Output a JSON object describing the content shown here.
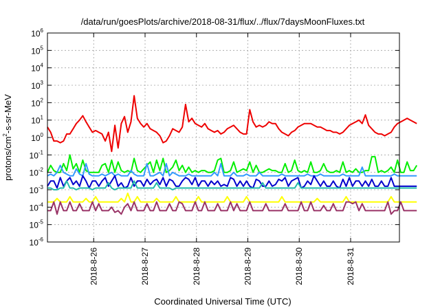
{
  "chart_data": {
    "type": "line",
    "title": "/data/run/goesPlots/archive/2018-08-31/flux/../flux/7daysMoonFluxes.txt",
    "xlabel": "Coordinated Universal Time (UTC)",
    "ylabel_parts": [
      "protons/cm",
      "2",
      "-s-sr-MeV"
    ],
    "y_scale": "log",
    "ylim_exponents": [
      -6,
      6
    ],
    "xlim_days": [
      25.1,
      31.95
    ],
    "x_ticks": [
      {
        "label": "2018-8-26",
        "day": 26
      },
      {
        "label": "2018-8-27",
        "day": 27
      },
      {
        "label": "2018-8-28",
        "day": 28
      },
      {
        "label": "2018-8-29",
        "day": 29
      },
      {
        "label": "2018-8-30",
        "day": 30
      },
      {
        "label": "2018-8-31",
        "day": 31
      }
    ],
    "y_ticks": [
      {
        "base": "10",
        "exp": "-6"
      },
      {
        "base": "10",
        "exp": "-5"
      },
      {
        "base": "10",
        "exp": "-4"
      },
      {
        "base": "10",
        "exp": "-3"
      },
      {
        "base": "10",
        "exp": "-2"
      },
      {
        "base": "10",
        "exp": "-1"
      },
      {
        "base": "10",
        "exp": "0"
      },
      {
        "base": "10",
        "exp": "1"
      },
      {
        "base": "10",
        "exp": "2"
      },
      {
        "base": "10",
        "exp": "3"
      },
      {
        "base": "10",
        "exp": "4"
      },
      {
        "base": "10",
        "exp": "5"
      },
      {
        "base": "10",
        "exp": "6"
      }
    ],
    "grid": true,
    "x_start": 25.1,
    "x_step": 0.0625,
    "series": [
      {
        "color": "#ee0000",
        "log10": [
          0.6,
          0.3,
          -0.2,
          -0.2,
          -0.3,
          -0.2,
          0.2,
          0.2,
          0.5,
          0.8,
          1.0,
          1.25,
          0.9,
          0.6,
          0.3,
          0.4,
          0.3,
          0.2,
          -0.2,
          0.3,
          -0.8,
          0.7,
          -0.6,
          0.8,
          1.2,
          0.3,
          0.9,
          2.4,
          1.1,
          0.8,
          0.6,
          0.8,
          0.5,
          0.4,
          0.3,
          0.1,
          -0.3,
          -0.2,
          0.1,
          0.5,
          0.4,
          0.3,
          0.6,
          1.9,
          0.9,
          1.1,
          0.8,
          0.7,
          0.6,
          0.8,
          0.5,
          0.4,
          0.3,
          0.4,
          0.2,
          0.3,
          0.5,
          0.6,
          0.7,
          0.5,
          0.3,
          0.2,
          0.2,
          1.6,
          0.9,
          0.6,
          0.7,
          0.6,
          0.7,
          0.9,
          0.8,
          0.8,
          0.5,
          0.3,
          0.2,
          0.1,
          0.3,
          0.4,
          0.6,
          0.7,
          0.8,
          0.8,
          0.8,
          0.7,
          0.6,
          0.6,
          0.5,
          0.4,
          0.4,
          0.3,
          0.3,
          0.2,
          0.3,
          0.5,
          0.7,
          0.8,
          0.9,
          1.0,
          0.8,
          1.3,
          0.7,
          0.5,
          0.3,
          0.2,
          0.2,
          0.1,
          0.2,
          0.3,
          0.6,
          0.8,
          0.9,
          1.0,
          1.1,
          1.0,
          0.9,
          0.8
        ]
      },
      {
        "color": "#00ee00",
        "log10": [
          -2.0,
          -1.6,
          -1.9,
          -2.0,
          -2.0,
          -1.5,
          -1.9,
          -1.0,
          -1.8,
          -1.5,
          -2.0,
          -1.3,
          -1.9,
          -2.0,
          -2.0,
          -2.0,
          -2.0,
          -1.6,
          -1.5,
          -2.0,
          -1.3,
          -2.0,
          -1.4,
          -1.9,
          -2.0,
          -1.9,
          -2.0,
          -1.2,
          -1.9,
          -2.0,
          -1.8,
          -1.6,
          -1.4,
          -2.0,
          -1.3,
          -1.9,
          -1.2,
          -2.0,
          -1.9,
          -1.7,
          -1.3,
          -1.9,
          -1.6,
          -2.0,
          -1.7,
          -2.0,
          -1.9,
          -2.0,
          -1.9,
          -1.9,
          -2.0,
          -2.0,
          -1.9,
          -1.3,
          -1.2,
          -2.0,
          -2.0,
          -1.9,
          -1.4,
          -2.0,
          -1.9,
          -1.8,
          -1.9,
          -1.4,
          -2.0,
          -1.6,
          -2.0,
          -2.0,
          -1.9,
          -1.8,
          -1.9,
          -1.9,
          -2.0,
          -2.0,
          -1.5,
          -2.0,
          -1.9,
          -1.3,
          -1.9,
          -2.0,
          -1.9,
          -2.0,
          -1.4,
          -2.0,
          -2.0,
          -1.9,
          -1.5,
          -1.9,
          -2.0,
          -2.0,
          -1.9,
          -2.0,
          -1.4,
          -2.0,
          -1.9,
          -2.0,
          -1.8,
          -2.0,
          -2.0,
          -1.9,
          -1.9,
          -1.1,
          -1.1,
          -2.0,
          -1.9,
          -2.0,
          -1.9,
          -1.7,
          -2.0,
          -1.3,
          -2.0,
          -2.0,
          -1.4,
          -1.9,
          -1.9,
          -1.6
        ]
      },
      {
        "color": "#3399ff",
        "log10": [
          -2.2,
          -2.1,
          -2.2,
          -2.0,
          -1.6,
          -2.0,
          -2.1,
          -2.2,
          -2.2,
          -1.8,
          -2.1,
          -2.2,
          -1.5,
          -2.1,
          -2.2,
          -2.2,
          -2.2,
          -2.1,
          -2.2,
          -2.1,
          -2.0,
          -2.2,
          -2.1,
          -2.2,
          -2.2,
          -2.2,
          -1.9,
          -2.1,
          -2.2,
          -2.2,
          -2.2,
          -1.5,
          -2.2,
          -2.2,
          -2.1,
          -2.0,
          -2.2,
          -1.5,
          -2.2,
          -2.0,
          -2.1,
          -2.2,
          -2.2,
          -2.2,
          -2.1,
          -2.2,
          -2.2,
          -2.2,
          -2.2,
          -2.2,
          -2.2,
          -2.2,
          -2.0,
          -2.2,
          -1.5,
          -2.2,
          -2.2,
          -2.2,
          -2.0,
          -2.2,
          -2.2,
          -2.2,
          -2.1,
          -2.2,
          -2.2,
          -2.2,
          -2.0,
          -2.2,
          -2.2,
          -2.2,
          -2.2,
          -2.2,
          -2.2,
          -2.1,
          -2.2,
          -2.2,
          -2.2,
          -2.2,
          -2.2,
          -2.2,
          -2.2,
          -2.1,
          -2.2,
          -2.2,
          -2.2,
          -2.1,
          -2.2,
          -2.2,
          -2.2,
          -2.2,
          -2.2,
          -2.2,
          -2.1,
          -2.2,
          -2.2,
          -2.2,
          -2.2,
          -2.2,
          -1.7,
          -2.2,
          -2.2,
          -2.2,
          -2.2,
          -2.2,
          -2.2,
          -2.2,
          -2.2,
          -2.2,
          -2.1,
          -2.2,
          -2.2,
          -2.2,
          -2.2,
          -2.2,
          -2.2,
          -2.2
        ]
      },
      {
        "color": "#0000cc",
        "log10": [
          -2.8,
          -2.5,
          -2.5,
          -2.9,
          -2.3,
          -2.8,
          -2.5,
          -2.3,
          -2.7,
          -2.5,
          -2.8,
          -2.2,
          -2.5,
          -2.9,
          -2.5,
          -2.5,
          -2.8,
          -2.5,
          -2.3,
          -2.8,
          -2.5,
          -2.2,
          -2.8,
          -2.6,
          -2.9,
          -2.8,
          -2.3,
          -2.8,
          -2.5,
          -2.5,
          -2.8,
          -2.4,
          -2.7,
          -2.5,
          -2.4,
          -2.7,
          -2.3,
          -2.8,
          -2.4,
          -2.5,
          -2.8,
          -2.8,
          -2.5,
          -2.3,
          -2.4,
          -2.7,
          -2.3,
          -2.8,
          -2.5,
          -2.5,
          -2.8,
          -2.5,
          -2.7,
          -2.5,
          -2.8,
          -2.7,
          -2.8,
          -2.3,
          -2.4,
          -2.8,
          -2.5,
          -2.8,
          -2.5,
          -2.8,
          -2.9,
          -2.4,
          -2.5,
          -2.8,
          -2.8,
          -2.5,
          -2.8,
          -2.7,
          -2.4,
          -2.5,
          -2.3,
          -2.8,
          -2.5,
          -2.4,
          -2.3,
          -2.9,
          -2.8,
          -2.5,
          -2.7,
          -2.2,
          -2.5,
          -2.8,
          -2.5,
          -2.8,
          -2.8,
          -2.5,
          -2.8,
          -2.9,
          -2.4,
          -2.8,
          -2.3,
          -2.8,
          -2.5,
          -2.5,
          -2.8,
          -2.5,
          -2.8,
          -2.4,
          -2.8,
          -2.8,
          -2.5,
          -2.8,
          -2.8,
          -2.3,
          -2.8,
          -2.8,
          -2.8,
          -2.8,
          -2.8,
          -2.8,
          -2.8,
          -2.8
        ]
      },
      {
        "color": "#22bbaa",
        "log10": [
          -2.9,
          -2.9,
          -3.0,
          -3.0,
          -2.9,
          -2.9,
          -2.5,
          -2.9,
          -2.9,
          -3.0,
          -2.9,
          -2.9,
          -2.9,
          -2.9,
          -3.0,
          -2.9,
          -2.9,
          -2.9,
          -2.9,
          -2.6,
          -2.9,
          -3.0,
          -2.9,
          -2.9,
          -2.9,
          -2.9,
          -2.9,
          -2.5,
          -2.9,
          -2.9,
          -2.9,
          -2.9,
          -2.9,
          -2.9,
          -2.6,
          -2.9,
          -2.9,
          -2.9,
          -2.9,
          -3.0,
          -2.9,
          -2.9,
          -2.9,
          -2.9,
          -2.9,
          -2.9,
          -2.9,
          -2.9,
          -2.9,
          -2.9,
          -2.9,
          -2.9,
          -2.9,
          -2.9,
          -2.9,
          -2.9,
          -2.9,
          -2.9,
          -2.9,
          -2.9,
          -2.9,
          -2.9,
          -2.9,
          -2.9,
          -2.9,
          -2.9,
          -2.9,
          -2.6,
          -2.9,
          -2.9,
          -2.9,
          -2.9,
          -2.9,
          -2.9,
          -2.9,
          -2.9,
          -2.9,
          -2.9,
          -2.6,
          -2.9,
          -2.9,
          -2.9,
          -2.9,
          -2.9,
          -2.9,
          -2.9,
          -2.9,
          -2.9,
          -2.9,
          -2.9,
          -2.9,
          -2.9,
          -2.9,
          -2.9,
          -2.9,
          -2.9,
          -2.9,
          -2.9,
          -2.9,
          -2.9,
          -2.9,
          -2.9,
          -2.9,
          -2.9,
          -2.9,
          -2.9,
          -2.9,
          -2.9,
          -2.9,
          -2.9,
          -2.9,
          -2.9,
          -2.9,
          -2.9,
          -2.9,
          -2.9
        ]
      },
      {
        "color": "#ffff00",
        "log10": [
          -3.7,
          -3.7,
          -3.7,
          -3.5,
          -3.7,
          -3.7,
          -3.7,
          -3.4,
          -3.7,
          -3.7,
          -3.7,
          -3.7,
          -3.5,
          -3.7,
          -3.7,
          -3.4,
          -3.7,
          -3.7,
          -3.7,
          -3.7,
          -3.7,
          -3.7,
          -3.7,
          -3.5,
          -3.7,
          -3.2,
          -3.7,
          -3.7,
          -3.4,
          -3.7,
          -3.7,
          -3.7,
          -3.7,
          -3.7,
          -3.5,
          -3.7,
          -3.7,
          -3.7,
          -3.7,
          -3.7,
          -3.4,
          -3.7,
          -3.7,
          -3.7,
          -3.7,
          -3.7,
          -3.7,
          -3.4,
          -3.7,
          -3.7,
          -3.7,
          -3.7,
          -3.7,
          -3.7,
          -3.7,
          -3.7,
          -3.4,
          -3.7,
          -3.7,
          -3.7,
          -3.7,
          -3.7,
          -3.4,
          -3.7,
          -3.7,
          -3.7,
          -3.7,
          -3.7,
          -3.7,
          -3.7,
          -3.7,
          -3.7,
          -3.7,
          -3.4,
          -3.7,
          -3.7,
          -3.7,
          -3.7,
          -3.7,
          -3.7,
          -3.7,
          -3.7,
          -3.7,
          -3.7,
          -3.5,
          -3.7,
          -3.7,
          -3.7,
          -3.7,
          -3.7,
          -3.7,
          -3.7,
          -3.7,
          -3.4,
          -3.7,
          -3.7,
          -3.7,
          -3.7,
          -3.7,
          -3.7,
          -3.7,
          -3.7,
          -3.7,
          -3.7,
          -3.7,
          -3.7,
          -3.7,
          -3.4,
          -3.7,
          -3.7,
          -3.7,
          -3.7,
          -3.7,
          -3.7,
          -3.7,
          -3.7
        ]
      },
      {
        "color": "#993366",
        "log10": [
          -4.2,
          -4.2,
          -3.7,
          -4.4,
          -3.7,
          -4.2,
          -4.2,
          -3.7,
          -4.2,
          -4.2,
          -3.8,
          -4.2,
          -4.2,
          -4.2,
          -3.7,
          -4.2,
          -3.8,
          -4.2,
          -4.2,
          -4.2,
          -4.0,
          -4.3,
          -4.2,
          -4.4,
          -4.0,
          -3.8,
          -4.2,
          -3.7,
          -4.2,
          -4.2,
          -4.2,
          -3.8,
          -4.2,
          -4.2,
          -3.7,
          -4.2,
          -4.2,
          -4.2,
          -3.8,
          -4.2,
          -4.2,
          -3.7,
          -3.8,
          -4.2,
          -4.2,
          -4.2,
          -3.7,
          -4.2,
          -4.2,
          -3.7,
          -4.2,
          -4.2,
          -4.2,
          -3.8,
          -4.2,
          -4.2,
          -4.2,
          -3.7,
          -4.2,
          -3.8,
          -4.2,
          -4.2,
          -4.2,
          -3.7,
          -4.2,
          -4.2,
          -4.2,
          -4.2,
          -3.8,
          -4.2,
          -4.2,
          -4.2,
          -4.2,
          -4.2,
          -3.8,
          -4.2,
          -4.2,
          -4.2,
          -4.2,
          -3.7,
          -4.2,
          -4.2,
          -3.7,
          -4.2,
          -4.2,
          -4.2,
          -3.9,
          -4.2,
          -4.2,
          -3.8,
          -4.2,
          -4.2,
          -4.2,
          -3.7,
          -3.7,
          -3.8,
          -3.7,
          -4.2,
          -3.8,
          -4.2,
          -4.2,
          -4.2,
          -4.2,
          -4.2,
          -4.2,
          -4.2,
          -3.7,
          -4.4,
          -4.2,
          -4.2,
          -3.7,
          -4.2,
          -4.2,
          -4.2,
          -4.2,
          -4.2
        ]
      }
    ]
  }
}
